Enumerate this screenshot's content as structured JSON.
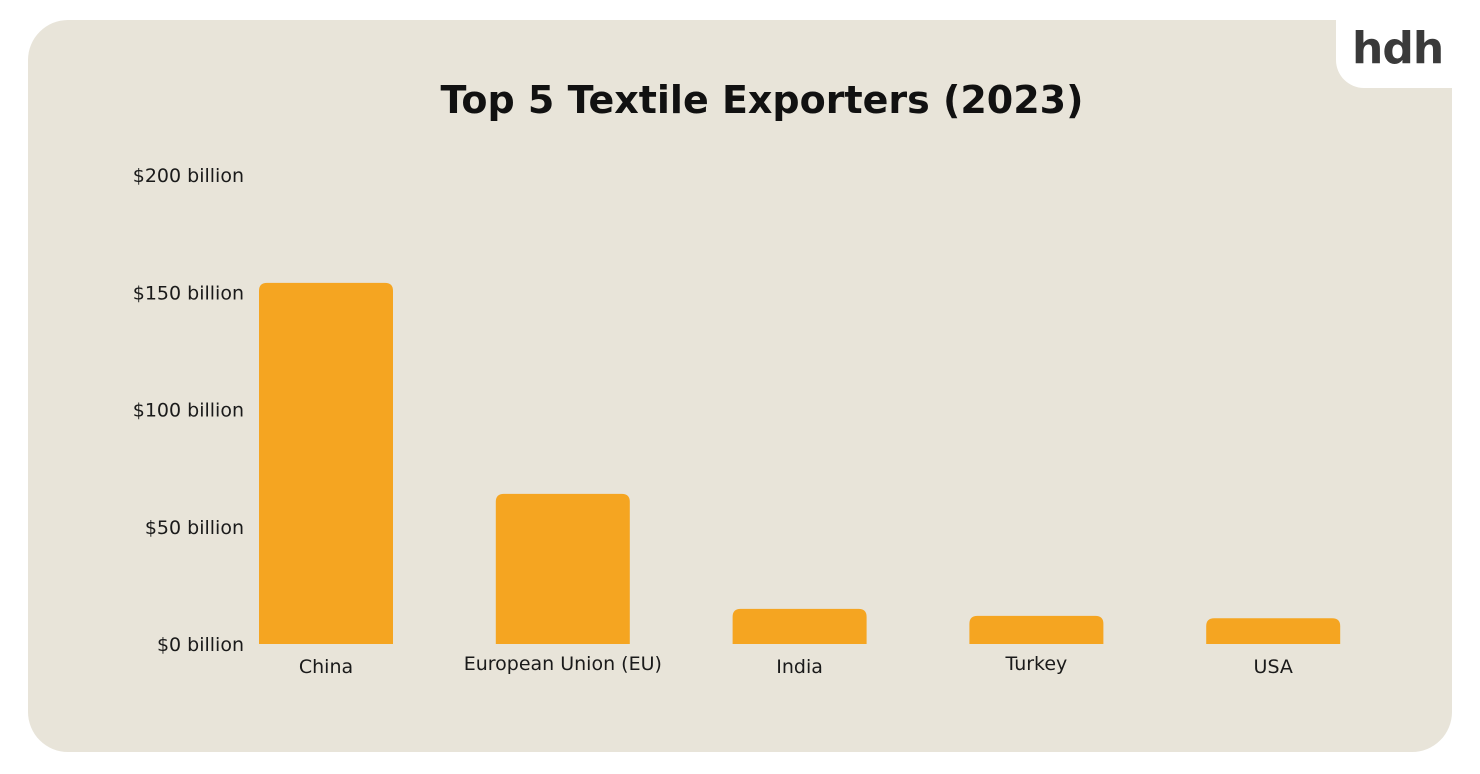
{
  "logo": "hdh",
  "chart_data": {
    "type": "bar",
    "title": "Top 5 Textile Exporters (2023)",
    "categories": [
      "China",
      "European Union (EU)",
      "India",
      "Turkey",
      "USA"
    ],
    "values": [
      154,
      64,
      15,
      12,
      11
    ],
    "unit": "billion USD",
    "xlabel": "",
    "ylabel": "",
    "ylim": [
      0,
      200
    ],
    "yticks": [
      0,
      50,
      100,
      150,
      200
    ],
    "ytick_labels": [
      "$0 billion",
      "$50 billion",
      "$100 billion",
      "$150 billion",
      "$200 billion"
    ],
    "grid": false,
    "bar_color": "#f5a521",
    "background_color": "#e8e4d9"
  }
}
